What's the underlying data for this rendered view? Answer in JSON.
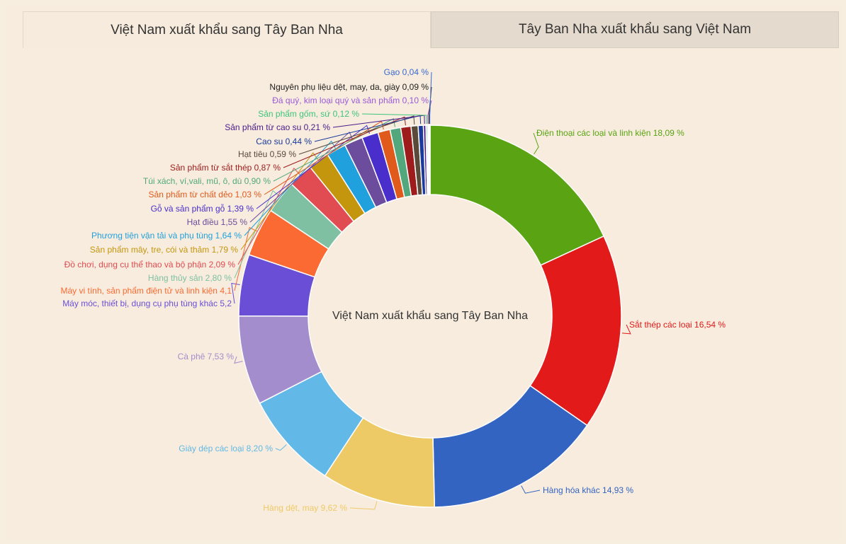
{
  "tabs": [
    {
      "label": "Việt Nam xuất khẩu sang Tây Ban Nha",
      "active": true
    },
    {
      "label": "Tây Ban Nha xuất khẩu sang Việt Nam",
      "active": false
    }
  ],
  "chart_data": {
    "type": "pie",
    "donut": true,
    "center_label": "Việt Nam xuất khẩu sang Tây Ban Nha",
    "slices": [
      {
        "label": "Điện thoại các loại và linh kiện 18,09 %",
        "value": 18.09,
        "color": "#5aa312"
      },
      {
        "label": "Sắt thép các loại 16,54 %",
        "value": 16.54,
        "color": "#e21a1a"
      },
      {
        "label": "Hàng hóa khác 14,93 %",
        "value": 14.93,
        "color": "#3464c2"
      },
      {
        "label": "Hàng dệt, may 9,62 %",
        "value": 9.62,
        "color": "#eeca66"
      },
      {
        "label": "Giày dép các loại 8,20 %",
        "value": 8.2,
        "color": "#62b8e6"
      },
      {
        "label": "Cà phê 7,53 %",
        "value": 7.53,
        "color": "#a48dcc"
      },
      {
        "label": "Máy móc, thiết bị, dụng cụ phụ tùng khác 5,2",
        "value": 5.2,
        "color": "#6a4fd6"
      },
      {
        "label": "Máy vi tính, sản phẩm điện tử và linh kiện 4,1",
        "value": 4.1,
        "color": "#fb6a32"
      },
      {
        "label": "Hàng thủy sản 2,80 %",
        "value": 2.8,
        "color": "#7fc0a2"
      },
      {
        "label": "Đồ chơi, dụng cụ thể thao và bộ phận 2,09 %",
        "value": 2.09,
        "color": "#e04c52"
      },
      {
        "label": "Sản phẩm mây, tre, cói và thảm 1,79 %",
        "value": 1.79,
        "color": "#c4960e"
      },
      {
        "label": "Phương tiện vận tải và phụ tùng 1,64 %",
        "value": 1.64,
        "color": "#20a0dc"
      },
      {
        "label": "Hạt điều 1,55 %",
        "value": 1.55,
        "color": "#6c4c9c"
      },
      {
        "label": "Gỗ và sản phẩm gỗ 1,39 %",
        "value": 1.39,
        "color": "#4a2ecc"
      },
      {
        "label": "Sản phẩm từ chất dẻo 1,03 %",
        "value": 1.03,
        "color": "#e05a1c"
      },
      {
        "label": "Túi xách, ví,vali, mũ, ô, dù 0,90 %",
        "value": 0.9,
        "color": "#52a87c"
      },
      {
        "label": "Sản phẩm từ sắt thép 0,87 %",
        "value": 0.87,
        "color": "#9e1c1c"
      },
      {
        "label": "Hạt tiêu 0,59 %",
        "value": 0.59,
        "color": "#5a4a3a"
      },
      {
        "label": "Cao su 0,44 %",
        "value": 0.44,
        "color": "#1a3a9c"
      },
      {
        "label": "Sản phẩm từ cao su 0,21 %",
        "value": 0.21,
        "color": "#4a1a8c"
      },
      {
        "label": "Sản phẩm gốm, sứ 0,12 %",
        "value": 0.12,
        "color": "#3ec47a"
      },
      {
        "label": "Đá quý, kim loại quý và sản phẩm 0,10 %",
        "value": 0.1,
        "color": "#9a5ad8"
      },
      {
        "label": "Nguyên phụ liệu dệt, may, da, giày 0,09 %",
        "value": 0.09,
        "color": "#222222"
      },
      {
        "label": "Gạo 0,04 %",
        "value": 0.04,
        "color": "#3a6ad0"
      }
    ]
  }
}
